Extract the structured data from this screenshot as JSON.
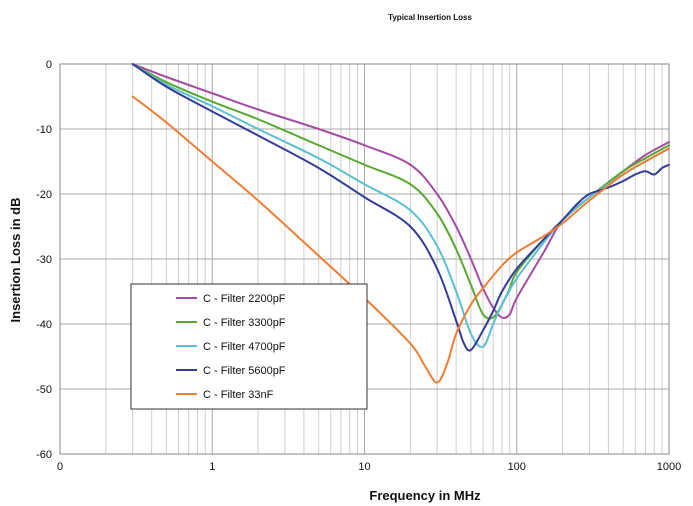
{
  "chart_data": {
    "type": "line",
    "title": "Typical Insertion Loss",
    "xlabel": "Frequency in MHz",
    "ylabel": "Insertion Loss in dB",
    "x_scale": "log",
    "xlim": [
      0.1,
      1000
    ],
    "ylim": [
      -60,
      0
    ],
    "x_ticks": [
      {
        "value": 0.1,
        "label": "0"
      },
      {
        "value": 1,
        "label": "1"
      },
      {
        "value": 10,
        "label": "10"
      },
      {
        "value": 100,
        "label": "100"
      },
      {
        "value": 1000,
        "label": "1000"
      }
    ],
    "y_ticks": [
      {
        "value": 0,
        "label": "0"
      },
      {
        "value": -10,
        "label": "-10"
      },
      {
        "value": -20,
        "label": "-20"
      },
      {
        "value": -30,
        "label": "-30"
      },
      {
        "value": -40,
        "label": "-40"
      },
      {
        "value": -50,
        "label": "-50"
      },
      {
        "value": -60,
        "label": "-60"
      }
    ],
    "grid": true,
    "legend_position": "lower-left",
    "series": [
      {
        "name": "C - Filter 2200pF",
        "color": "#a64ca6",
        "x": [
          0.3,
          0.5,
          1,
          2,
          5,
          10,
          20,
          30,
          40,
          50,
          60,
          70,
          80,
          90,
          100,
          150,
          200,
          300,
          500,
          700,
          1000
        ],
        "y": [
          0,
          -2,
          -4.5,
          -7,
          -10,
          -12.5,
          -15.5,
          -20,
          -25,
          -30,
          -34.5,
          -37.5,
          -39,
          -38.5,
          -36,
          -29,
          -24,
          -20.5,
          -16.5,
          -14,
          -12
        ]
      },
      {
        "name": "C - Filter 3300pF",
        "color": "#5aa832",
        "x": [
          0.3,
          0.5,
          1,
          2,
          5,
          10,
          20,
          30,
          40,
          50,
          60,
          70,
          80,
          90,
          100,
          150,
          200,
          300,
          500,
          700,
          1000
        ],
        "y": [
          0,
          -2.8,
          -5.8,
          -8.5,
          -12.5,
          -15.5,
          -18.5,
          -23,
          -28.5,
          -34,
          -38.5,
          -39,
          -37,
          -34.5,
          -32,
          -27,
          -24,
          -20.5,
          -16.5,
          -14.5,
          -12.5
        ]
      },
      {
        "name": "C - Filter 4700pF",
        "color": "#5bbfd6",
        "x": [
          0.3,
          0.5,
          1,
          2,
          5,
          10,
          20,
          30,
          40,
          50,
          60,
          70,
          80,
          100,
          150,
          200,
          300,
          500,
          700,
          1000
        ],
        "y": [
          0,
          -3.2,
          -6.5,
          -10,
          -14.5,
          -18.5,
          -22.5,
          -28,
          -35,
          -41.5,
          -43.5,
          -40,
          -37,
          -33,
          -27.5,
          -24,
          -20.5,
          -17,
          -15,
          -13
        ]
      },
      {
        "name": "C - Filter 5600pF",
        "color": "#333d99",
        "x": [
          0.3,
          0.5,
          1,
          2,
          5,
          10,
          20,
          30,
          40,
          45,
          50,
          60,
          70,
          80,
          100,
          150,
          200,
          250,
          300,
          400,
          500,
          600,
          700,
          800,
          900,
          1000
        ],
        "y": [
          0,
          -3.5,
          -7.3,
          -11,
          -16,
          -20.5,
          -25,
          -31.5,
          -39.5,
          -43,
          -44,
          -41,
          -38,
          -35,
          -31.5,
          -27,
          -24,
          -21.5,
          -20,
          -19,
          -18,
          -17,
          -16.5,
          -17,
          -16,
          -15.5
        ]
      },
      {
        "name": "C - Filter 33nF",
        "color": "#f07d32",
        "x": [
          0.3,
          0.5,
          1,
          2,
          5,
          10,
          20,
          25,
          30,
          35,
          40,
          50,
          60,
          80,
          100,
          150,
          200,
          300,
          500,
          700,
          1000
        ],
        "y": [
          -5,
          -9,
          -15,
          -21,
          -29.5,
          -36,
          -43,
          -46.5,
          -49,
          -46,
          -41.5,
          -37,
          -34.5,
          -31,
          -29,
          -26.5,
          -24.5,
          -21,
          -17,
          -15,
          -13
        ]
      }
    ]
  }
}
